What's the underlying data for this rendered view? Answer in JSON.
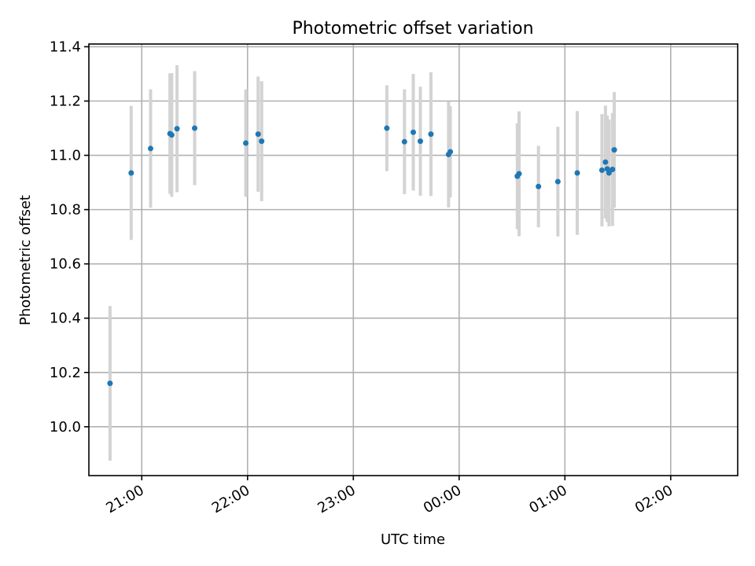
{
  "chart_data": {
    "type": "scatter",
    "title": "Photometric offset variation",
    "xlabel": "UTC time",
    "ylabel": "Photometric offset",
    "xlim": [
      "20:30",
      "02:38"
    ],
    "ylim": [
      9.82,
      11.41
    ],
    "x_ticks": [
      "21:00",
      "22:00",
      "23:00",
      "00:00",
      "01:00",
      "02:00"
    ],
    "y_ticks": [
      10.0,
      10.2,
      10.4,
      10.6,
      10.8,
      11.0,
      11.2,
      11.4
    ],
    "grid": true,
    "marker_color": "#1f77b4",
    "errorbar_color": "#d3d3d3",
    "points": [
      {
        "x": "20:42",
        "y": 10.16,
        "err": 0.285
      },
      {
        "x": "20:54",
        "y": 10.935,
        "err": 0.247
      },
      {
        "x": "21:05",
        "y": 11.025,
        "err": 0.218
      },
      {
        "x": "21:16",
        "y": 11.08,
        "err": 0.222
      },
      {
        "x": "21:17",
        "y": 11.075,
        "err": 0.228
      },
      {
        "x": "21:20",
        "y": 11.098,
        "err": 0.234
      },
      {
        "x": "21:30",
        "y": 11.1,
        "err": 0.21
      },
      {
        "x": "21:59",
        "y": 11.045,
        "err": 0.198
      },
      {
        "x": "22:06",
        "y": 11.078,
        "err": 0.212
      },
      {
        "x": "22:08",
        "y": 11.052,
        "err": 0.221
      },
      {
        "x": "23:19",
        "y": 11.1,
        "err": 0.158
      },
      {
        "x": "23:29",
        "y": 11.05,
        "err": 0.193
      },
      {
        "x": "23:34",
        "y": 11.085,
        "err": 0.215
      },
      {
        "x": "23:38",
        "y": 11.052,
        "err": 0.201
      },
      {
        "x": "23:44",
        "y": 11.078,
        "err": 0.228
      },
      {
        "x": "23:54",
        "y": 11.003,
        "err": 0.195
      },
      {
        "x": "23:55",
        "y": 11.013,
        "err": 0.168
      },
      {
        "x": "00:33",
        "y": 10.923,
        "err": 0.195
      },
      {
        "x": "00:34",
        "y": 10.932,
        "err": 0.23
      },
      {
        "x": "00:45",
        "y": 10.885,
        "err": 0.15
      },
      {
        "x": "00:56",
        "y": 10.903,
        "err": 0.202
      },
      {
        "x": "01:07",
        "y": 10.935,
        "err": 0.228
      },
      {
        "x": "01:21",
        "y": 10.945,
        "err": 0.207
      },
      {
        "x": "01:23",
        "y": 10.975,
        "err": 0.208
      },
      {
        "x": "01:24",
        "y": 10.95,
        "err": 0.196
      },
      {
        "x": "01:25",
        "y": 10.935,
        "err": 0.197
      },
      {
        "x": "01:27",
        "y": 10.948,
        "err": 0.208
      },
      {
        "x": "01:28",
        "y": 11.02,
        "err": 0.213
      }
    ]
  }
}
